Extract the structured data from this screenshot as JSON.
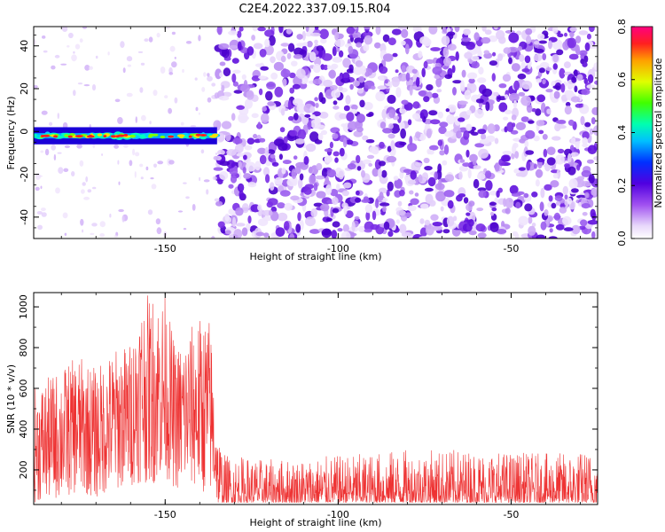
{
  "title": "C2E4.2022.337.09.15.R04",
  "chart_data": [
    {
      "type": "heatmap",
      "xlabel": "Height of straight line (km)",
      "ylabel": "Frequency (Hz)",
      "xlim": [
        -188,
        -25
      ],
      "ylim": [
        -50,
        49
      ],
      "x_ticks": [
        -150,
        -100,
        -50
      ],
      "y_ticks": [
        -40,
        -20,
        0,
        20,
        40
      ],
      "signal_band": {
        "x_range": [
          -188,
          -135
        ],
        "frequency_center": -2,
        "frequency_halfwidth": 4
      },
      "noise_region_x_start": -135,
      "colorbar": {
        "label": "Normalized spectral amplitude",
        "range": [
          0.0,
          0.8
        ],
        "ticks": [
          "0.0",
          "0.2",
          "0.4",
          "0.6",
          "0.8"
        ]
      }
    },
    {
      "type": "line",
      "xlabel": "Height of straight line (km)",
      "ylabel": "SNR (10 * v/v)",
      "xlim": [
        -188,
        -25
      ],
      "ylim": [
        30,
        1070
      ],
      "x_ticks": [
        -150,
        -100,
        -50
      ],
      "y_ticks": [
        200,
        400,
        600,
        800,
        1000
      ],
      "series": [
        {
          "color": "#ee3333",
          "envelope_x": [
            -188,
            -180,
            -175,
            -170,
            -165,
            -160,
            -157,
            -153,
            -150,
            -147,
            -143,
            -140,
            -137,
            -135,
            -133,
            -120,
            -100,
            -80,
            -60,
            -40,
            -25
          ],
          "envelope_max": [
            600,
            700,
            760,
            700,
            790,
            830,
            1050,
            1070,
            1060,
            800,
            900,
            950,
            950,
            450,
            280,
            250,
            270,
            300,
            300,
            280,
            300
          ],
          "envelope_min": [
            40,
            60,
            90,
            60,
            100,
            120,
            140,
            130,
            170,
            100,
            120,
            90,
            80,
            40,
            40,
            40,
            40,
            40,
            40,
            40,
            40
          ]
        }
      ]
    }
  ]
}
